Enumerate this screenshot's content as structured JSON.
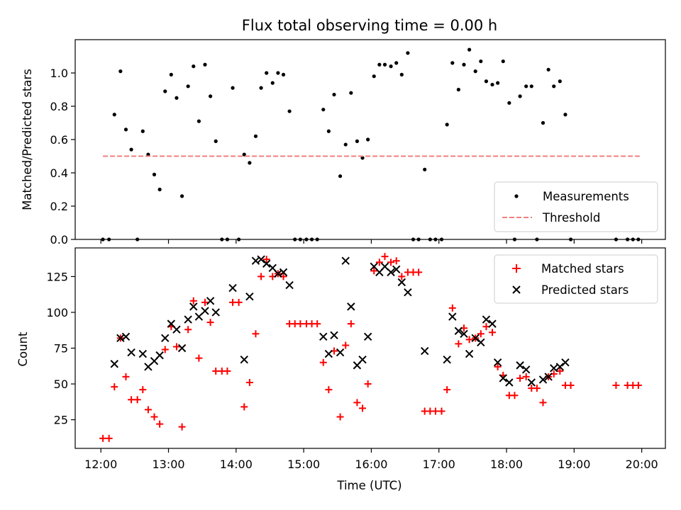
{
  "chart_data": [
    {
      "type": "scatter",
      "title": "Flux total observing time = 0.00 h",
      "xlabel": "",
      "ylabel": "Matched/Predicted stars",
      "xlim": [
        11.62,
        20.35
      ],
      "ylim": [
        0,
        1.2
      ],
      "yticks": [
        0.0,
        0.2,
        0.4,
        0.6,
        0.8,
        1.0
      ],
      "ytick_labels": [
        "0.0",
        "0.2",
        "0.4",
        "0.6",
        "0.8",
        "1.0"
      ],
      "legend": {
        "placement": "lower-right",
        "entries": [
          "Measurements",
          "Threshold"
        ]
      },
      "colors": {
        "measurements": "#000000",
        "threshold": "#f08080"
      },
      "series": [
        {
          "name": "Measurements",
          "marker": "dot",
          "points": [
            [
              12.03,
              0.0
            ],
            [
              12.12,
              0.0
            ],
            [
              12.2,
              0.75
            ],
            [
              12.29,
              1.01
            ],
            [
              12.37,
              0.66
            ],
            [
              12.45,
              0.54
            ],
            [
              12.54,
              0.0
            ],
            [
              12.62,
              0.65
            ],
            [
              12.7,
              0.51
            ],
            [
              12.79,
              0.39
            ],
            [
              12.87,
              0.3
            ],
            [
              12.95,
              0.89
            ],
            [
              13.04,
              0.99
            ],
            [
              13.12,
              0.85
            ],
            [
              13.2,
              0.26
            ],
            [
              13.29,
              0.92
            ],
            [
              13.37,
              1.04
            ],
            [
              13.45,
              0.71
            ],
            [
              13.54,
              1.05
            ],
            [
              13.62,
              0.86
            ],
            [
              13.7,
              0.59
            ],
            [
              13.79,
              0.0
            ],
            [
              13.87,
              0.0
            ],
            [
              13.95,
              0.91
            ],
            [
              14.04,
              0.0
            ],
            [
              14.12,
              0.51
            ],
            [
              14.2,
              0.46
            ],
            [
              14.29,
              0.62
            ],
            [
              14.37,
              0.91
            ],
            [
              14.45,
              1.0
            ],
            [
              14.54,
              0.94
            ],
            [
              14.62,
              1.0
            ],
            [
              14.7,
              0.99
            ],
            [
              14.79,
              0.77
            ],
            [
              14.87,
              0.0
            ],
            [
              14.95,
              0.0
            ],
            [
              15.04,
              0.0
            ],
            [
              15.12,
              0.0
            ],
            [
              15.2,
              0.0
            ],
            [
              15.29,
              0.78
            ],
            [
              15.37,
              0.65
            ],
            [
              15.45,
              0.87
            ],
            [
              15.54,
              0.38
            ],
            [
              15.62,
              0.57
            ],
            [
              15.7,
              0.88
            ],
            [
              15.79,
              0.59
            ],
            [
              15.87,
              0.49
            ],
            [
              15.95,
              0.6
            ],
            [
              16.04,
              0.98
            ],
            [
              16.12,
              1.05
            ],
            [
              16.2,
              1.05
            ],
            [
              16.29,
              1.04
            ],
            [
              16.37,
              1.06
            ],
            [
              16.45,
              0.99
            ],
            [
              16.54,
              1.12
            ],
            [
              16.62,
              0.0
            ],
            [
              16.7,
              0.0
            ],
            [
              16.79,
              0.42
            ],
            [
              16.87,
              0.0
            ],
            [
              16.95,
              0.0
            ],
            [
              17.04,
              0.0
            ],
            [
              17.12,
              0.69
            ],
            [
              17.2,
              1.06
            ],
            [
              17.29,
              0.9
            ],
            [
              17.37,
              1.05
            ],
            [
              17.45,
              1.14
            ],
            [
              17.54,
              1.01
            ],
            [
              17.62,
              1.07
            ],
            [
              17.7,
              0.95
            ],
            [
              17.79,
              0.93
            ],
            [
              17.87,
              0.94
            ],
            [
              17.95,
              1.07
            ],
            [
              18.04,
              0.82
            ],
            [
              18.12,
              0.0
            ],
            [
              18.2,
              0.86
            ],
            [
              18.29,
              0.92
            ],
            [
              18.37,
              0.92
            ],
            [
              18.45,
              0.0
            ],
            [
              18.54,
              0.7
            ],
            [
              18.62,
              1.02
            ],
            [
              18.7,
              0.92
            ],
            [
              18.79,
              0.95
            ],
            [
              18.87,
              0.75
            ],
            [
              18.95,
              0.0
            ],
            [
              19.62,
              0.0
            ],
            [
              19.79,
              0.0
            ],
            [
              19.87,
              0.0
            ],
            [
              19.95,
              0.0
            ]
          ]
        },
        {
          "name": "Threshold",
          "marker": "dashed-line",
          "points": [
            [
              12.03,
              0.5
            ],
            [
              19.97,
              0.5
            ]
          ]
        }
      ]
    },
    {
      "type": "scatter",
      "title": "",
      "xlabel": "Time (UTC)",
      "ylabel": "Count",
      "xlim": [
        11.62,
        20.35
      ],
      "ylim": [
        5,
        145
      ],
      "yticks": [
        25,
        50,
        75,
        100,
        125
      ],
      "ytick_labels": [
        "25",
        "50",
        "75",
        "100",
        "125"
      ],
      "xticks": [
        12,
        13,
        14,
        15,
        16,
        17,
        18,
        19,
        20
      ],
      "xtick_labels": [
        "12:00",
        "13:00",
        "14:00",
        "15:00",
        "16:00",
        "17:00",
        "18:00",
        "19:00",
        "20:00"
      ],
      "legend": {
        "placement": "upper-right",
        "entries": [
          "Matched stars",
          "Predicted stars"
        ]
      },
      "colors": {
        "matched": "#ff0000",
        "predicted": "#000000"
      },
      "series": [
        {
          "name": "Matched stars",
          "marker": "plus",
          "points": [
            [
              12.03,
              12
            ],
            [
              12.12,
              12
            ],
            [
              12.2,
              48
            ],
            [
              12.29,
              82
            ],
            [
              12.37,
              55
            ],
            [
              12.45,
              39
            ],
            [
              12.54,
              39
            ],
            [
              12.62,
              46
            ],
            [
              12.7,
              32
            ],
            [
              12.79,
              27
            ],
            [
              12.87,
              22
            ],
            [
              12.95,
              74
            ],
            [
              13.04,
              90
            ],
            [
              13.12,
              76
            ],
            [
              13.2,
              20
            ],
            [
              13.29,
              88
            ],
            [
              13.37,
              108
            ],
            [
              13.45,
              68
            ],
            [
              13.54,
              107
            ],
            [
              13.62,
              93
            ],
            [
              13.7,
              59
            ],
            [
              13.79,
              59
            ],
            [
              13.87,
              59
            ],
            [
              13.95,
              107
            ],
            [
              14.04,
              107
            ],
            [
              14.12,
              34
            ],
            [
              14.2,
              51
            ],
            [
              14.29,
              85
            ],
            [
              14.37,
              125
            ],
            [
              14.45,
              137
            ],
            [
              14.54,
              125
            ],
            [
              14.62,
              127
            ],
            [
              14.7,
              125
            ],
            [
              14.79,
              92
            ],
            [
              14.87,
              92
            ],
            [
              14.95,
              92
            ],
            [
              15.04,
              92
            ],
            [
              15.12,
              92
            ],
            [
              15.2,
              92
            ],
            [
              15.29,
              65
            ],
            [
              15.37,
              46
            ],
            [
              15.45,
              73
            ],
            [
              15.54,
              27
            ],
            [
              15.62,
              77
            ],
            [
              15.7,
              92
            ],
            [
              15.79,
              37
            ],
            [
              15.87,
              33
            ],
            [
              15.95,
              50
            ],
            [
              16.04,
              129
            ],
            [
              16.12,
              135
            ],
            [
              16.2,
              139
            ],
            [
              16.29,
              135
            ],
            [
              16.37,
              136
            ],
            [
              16.45,
              125
            ],
            [
              16.54,
              128
            ],
            [
              16.62,
              128
            ],
            [
              16.7,
              128
            ],
            [
              16.79,
              31
            ],
            [
              16.87,
              31
            ],
            [
              16.95,
              31
            ],
            [
              17.04,
              31
            ],
            [
              17.12,
              46
            ],
            [
              17.2,
              103
            ],
            [
              17.29,
              78
            ],
            [
              17.37,
              89
            ],
            [
              17.45,
              81
            ],
            [
              17.54,
              82
            ],
            [
              17.62,
              85
            ],
            [
              17.7,
              90
            ],
            [
              17.79,
              86
            ],
            [
              17.87,
              62
            ],
            [
              17.95,
              56
            ],
            [
              18.04,
              42
            ],
            [
              18.12,
              42
            ],
            [
              18.2,
              54
            ],
            [
              18.29,
              55
            ],
            [
              18.37,
              47
            ],
            [
              18.45,
              47
            ],
            [
              18.54,
              37
            ],
            [
              18.62,
              55
            ],
            [
              18.7,
              57
            ],
            [
              18.79,
              59
            ],
            [
              18.87,
              49
            ],
            [
              18.95,
              49
            ],
            [
              19.62,
              49
            ],
            [
              19.79,
              49
            ],
            [
              19.87,
              49
            ],
            [
              19.95,
              49
            ]
          ]
        },
        {
          "name": "Predicted stars",
          "marker": "x",
          "points": [
            [
              12.2,
              64
            ],
            [
              12.29,
              82
            ],
            [
              12.37,
              83
            ],
            [
              12.45,
              72
            ],
            [
              12.62,
              71
            ],
            [
              12.7,
              62
            ],
            [
              12.79,
              66
            ],
            [
              12.87,
              70
            ],
            [
              12.95,
              82
            ],
            [
              13.04,
              92
            ],
            [
              13.12,
              88
            ],
            [
              13.2,
              75
            ],
            [
              13.29,
              95
            ],
            [
              13.37,
              104
            ],
            [
              13.45,
              97
            ],
            [
              13.54,
              101
            ],
            [
              13.62,
              108
            ],
            [
              13.7,
              100
            ],
            [
              13.95,
              117
            ],
            [
              14.12,
              67
            ],
            [
              14.2,
              111
            ],
            [
              14.29,
              136
            ],
            [
              14.37,
              137
            ],
            [
              14.45,
              134
            ],
            [
              14.54,
              131
            ],
            [
              14.62,
              127
            ],
            [
              14.7,
              128
            ],
            [
              14.79,
              119
            ],
            [
              15.29,
              83
            ],
            [
              15.37,
              71
            ],
            [
              15.45,
              84
            ],
            [
              15.54,
              72
            ],
            [
              15.62,
              136
            ],
            [
              15.7,
              104
            ],
            [
              15.79,
              63
            ],
            [
              15.87,
              67
            ],
            [
              15.95,
              83
            ],
            [
              16.04,
              132
            ],
            [
              16.12,
              128
            ],
            [
              16.2,
              132
            ],
            [
              16.29,
              128
            ],
            [
              16.37,
              130
            ],
            [
              16.45,
              121
            ],
            [
              16.54,
              114
            ],
            [
              16.79,
              73
            ],
            [
              17.12,
              67
            ],
            [
              17.2,
              97
            ],
            [
              17.29,
              87
            ],
            [
              17.37,
              85
            ],
            [
              17.45,
              71
            ],
            [
              17.54,
              82
            ],
            [
              17.62,
              79
            ],
            [
              17.7,
              95
            ],
            [
              17.79,
              92
            ],
            [
              17.87,
              65
            ],
            [
              17.95,
              54
            ],
            [
              18.04,
              51
            ],
            [
              18.2,
              63
            ],
            [
              18.29,
              60
            ],
            [
              18.37,
              51
            ],
            [
              18.54,
              53
            ],
            [
              18.62,
              55
            ],
            [
              18.7,
              61
            ],
            [
              18.79,
              62
            ],
            [
              18.87,
              65
            ]
          ]
        }
      ]
    }
  ]
}
